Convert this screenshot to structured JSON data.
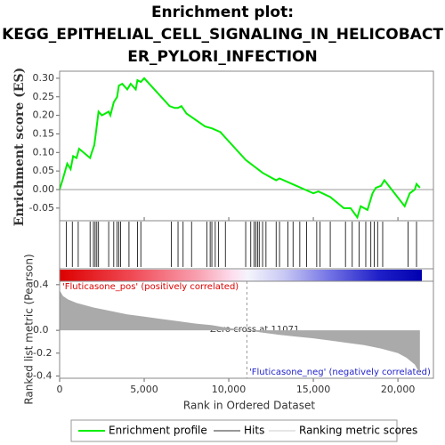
{
  "chart_data": [
    {
      "type": "line",
      "title": [
        "Enrichment plot:",
        "KEGG_EPITHELIAL_CELL_SIGNALING_IN_HELICOBACT",
        "ER_PYLORI_INFECTION"
      ],
      "ylabel": "Enrichment score (ES)",
      "x": [
        0,
        200,
        450,
        650,
        800,
        1000,
        1150,
        1800,
        1900,
        2050,
        2150,
        2300,
        2500,
        2900,
        3000,
        3200,
        3400,
        3500,
        3700,
        4000,
        4200,
        4500,
        4600,
        4800,
        5000,
        6500,
        6800,
        7000,
        7200,
        7500,
        8600,
        9000,
        9500,
        11000,
        12000,
        12800,
        13000,
        14000,
        14500,
        15000,
        15300,
        16000,
        16800,
        17200,
        17600,
        17800,
        18200,
        18500,
        18700,
        19000,
        19200,
        20400,
        20700,
        21000,
        21100,
        21300
      ],
      "series": [
        {
          "name": "Enrichment profile",
          "color": "#00ee00",
          "values": [
            0.0,
            0.03,
            0.07,
            0.055,
            0.09,
            0.085,
            0.11,
            0.085,
            0.1,
            0.12,
            0.155,
            0.21,
            0.2,
            0.21,
            0.2,
            0.235,
            0.25,
            0.28,
            0.285,
            0.27,
            0.285,
            0.27,
            0.295,
            0.29,
            0.3,
            0.225,
            0.22,
            0.22,
            0.225,
            0.205,
            0.17,
            0.165,
            0.155,
            0.08,
            0.045,
            0.025,
            0.03,
            0.01,
            0.0,
            -0.01,
            -0.005,
            -0.02,
            -0.05,
            -0.05,
            -0.075,
            -0.045,
            -0.055,
            -0.01,
            0.005,
            0.01,
            0.025,
            -0.045,
            -0.01,
            0.0,
            0.015,
            0.005
          ]
        }
      ],
      "xlim": [
        0,
        22100
      ],
      "ylim": [
        -0.084,
        0.319
      ],
      "yticks": [
        {
          "value": -0.05,
          "label": "-0.05"
        },
        {
          "value": 0,
          "label": "0.00"
        },
        {
          "value": 0.05,
          "label": "0.05"
        },
        {
          "value": 0.1,
          "label": "0.10"
        },
        {
          "value": 0.15,
          "label": "0.15"
        },
        {
          "value": 0.2,
          "label": "0.20"
        },
        {
          "value": 0.25,
          "label": "0.25"
        },
        {
          "value": 0.3,
          "label": "0.30"
        }
      ]
    },
    {
      "type": "rug",
      "series": [
        {
          "name": "Hits",
          "color": "#000000",
          "x": [
            400,
            750,
            1100,
            1800,
            2000,
            2100,
            2200,
            2300,
            2900,
            3200,
            3400,
            3500,
            3600,
            4100,
            4600,
            4800,
            6600,
            7000,
            7300,
            7800,
            8700,
            8900,
            9000,
            9200,
            9400,
            9800,
            11000,
            11300,
            11500,
            11600,
            11700,
            11800,
            12000,
            12200,
            12800,
            13000,
            13500,
            13800,
            14200,
            14600,
            15200,
            15400,
            16000,
            16900,
            17300,
            17700,
            18100,
            18400,
            18600,
            18800,
            19100,
            20600,
            21100
          ]
        }
      ],
      "xlim": [
        0,
        22100
      ]
    },
    {
      "type": "area",
      "ylabel": "Ranked list metric (Pearson)",
      "xlabel": "Rank in Ordered Dataset",
      "x": [
        0,
        200,
        500,
        1000,
        2000,
        3000,
        4000,
        5000,
        6000,
        7000,
        8000,
        9000,
        10000,
        11071,
        12000,
        13000,
        14000,
        15000,
        16000,
        17000,
        18000,
        19000,
        20000,
        20500,
        21000,
        21300
      ],
      "series": [
        {
          "name": "Ranking metric scores",
          "color": "#aaaaaa",
          "values": [
            0.35,
            0.3,
            0.27,
            0.24,
            0.2,
            0.17,
            0.14,
            0.12,
            0.1,
            0.08,
            0.06,
            0.045,
            0.02,
            0.0,
            -0.02,
            -0.04,
            -0.055,
            -0.07,
            -0.09,
            -0.11,
            -0.13,
            -0.16,
            -0.2,
            -0.24,
            -0.3,
            -0.38
          ]
        }
      ],
      "xlim": [
        0,
        22100
      ],
      "ylim": [
        -0.42,
        0.43
      ],
      "xticks": [
        0,
        {
          "value": 5000,
          "label": "5,000"
        },
        {
          "value": 10000,
          "label": "10,000"
        },
        {
          "value": 15000,
          "label": "15,000"
        },
        {
          "value": 20000,
          "label": "20,000"
        }
      ],
      "yticks": [
        {
          "value": -0.4,
          "label": "-0.4"
        },
        {
          "value": -0.2,
          "label": "-0.2"
        },
        {
          "value": 0,
          "label": "0.0"
        },
        {
          "value": 0.4,
          "label": "0.4"
        }
      ],
      "zero_cross": 11071,
      "annotations": [
        "'Fluticasone_pos' (positively correlated)",
        "Zero cross at 11071",
        "'Fluticasone_neg' (negatively correlated)"
      ]
    }
  ]
}
